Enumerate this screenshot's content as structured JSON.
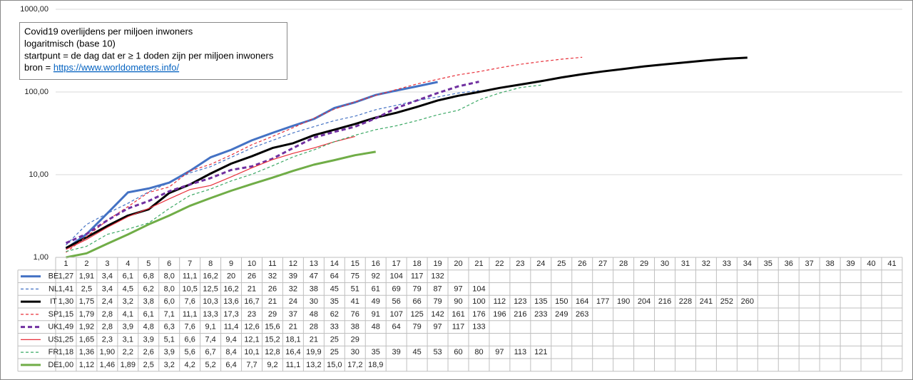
{
  "chart_data": {
    "type": "line",
    "annotation": [
      "Covid19 overlijdens per miljoen inwoners",
      "logaritmisch (base 10)",
      "startpunt = de dag dat er ≥ 1 doden zijn per miljoen inwoners"
    ],
    "source_label": "bron = ",
    "source_url": "https://www.worldometers.info/",
    "log_scale": true,
    "grid": true,
    "ylim": [
      1,
      1000
    ],
    "yticks": [
      {
        "value": 1,
        "label": "1,00"
      },
      {
        "value": 10,
        "label": "10,00"
      },
      {
        "value": 100,
        "label": "100,00"
      },
      {
        "value": 1000,
        "label": "1000,00"
      }
    ],
    "categories": [
      "1",
      "2",
      "3",
      "4",
      "5",
      "6",
      "7",
      "8",
      "9",
      "10",
      "11",
      "12",
      "13",
      "14",
      "15",
      "16",
      "17",
      "18",
      "19",
      "20",
      "21",
      "22",
      "23",
      "24",
      "25",
      "26",
      "27",
      "28",
      "29",
      "30",
      "31",
      "32",
      "33",
      "34",
      "35",
      "36",
      "37",
      "38",
      "39",
      "40",
      "41"
    ],
    "series": [
      {
        "name": "BE",
        "color": "#4472c4",
        "line_style": "solid",
        "line_width": "thick",
        "values": [
          1.27,
          1.91,
          3.4,
          6.1,
          6.8,
          8.0,
          11.1,
          16.2,
          20,
          26,
          32,
          39,
          47,
          64,
          75,
          92,
          104,
          117,
          132,
          null,
          null,
          null,
          null,
          null,
          null,
          null,
          null,
          null,
          null,
          null,
          null,
          null,
          null,
          null,
          null,
          null,
          null,
          null,
          null,
          null,
          null
        ],
        "value_labels": [
          "1,27",
          "1,91",
          "3,4",
          "6,1",
          "6,8",
          "8,0",
          "11,1",
          "16,2",
          "20",
          "26",
          "32",
          "39",
          "47",
          "64",
          "75",
          "92",
          "104",
          "117",
          "132",
          null,
          null,
          null,
          null,
          null,
          null,
          null,
          null,
          null,
          null,
          null,
          null,
          null,
          null,
          null,
          null,
          null,
          null,
          null,
          null,
          null,
          null
        ]
      },
      {
        "name": "NL",
        "color": "#4472c4",
        "line_style": "dashed",
        "line_width": "thin",
        "values": [
          1.41,
          2.5,
          3.4,
          4.5,
          6.2,
          8.0,
          10.5,
          12.5,
          16.2,
          21,
          26,
          32,
          38,
          45,
          51,
          61,
          69,
          79,
          87,
          97,
          104,
          null,
          null,
          null,
          null,
          null,
          null,
          null,
          null,
          null,
          null,
          null,
          null,
          null,
          null,
          null,
          null,
          null,
          null,
          null,
          null
        ],
        "value_labels": [
          "1,41",
          "2,5",
          "3,4",
          "4,5",
          "6,2",
          "8,0",
          "10,5",
          "12,5",
          "16,2",
          "21",
          "26",
          "32",
          "38",
          "45",
          "51",
          "61",
          "69",
          "79",
          "87",
          "97",
          "104",
          null,
          null,
          null,
          null,
          null,
          null,
          null,
          null,
          null,
          null,
          null,
          null,
          null,
          null,
          null,
          null,
          null,
          null,
          null,
          null
        ]
      },
      {
        "name": "IT",
        "color": "#000000",
        "line_style": "solid",
        "line_width": "thick",
        "values": [
          1.3,
          1.75,
          2.4,
          3.2,
          3.8,
          6.0,
          7.6,
          10.3,
          13.6,
          16.7,
          21,
          24,
          30,
          35,
          41,
          49,
          56,
          66,
          79,
          90,
          100,
          112,
          123,
          135,
          150,
          164,
          177,
          190,
          204,
          216,
          228,
          241,
          252,
          260,
          null,
          null,
          null,
          null,
          null,
          null,
          null
        ],
        "value_labels": [
          "1,30",
          "1,75",
          "2,4",
          "3,2",
          "3,8",
          "6,0",
          "7,6",
          "10,3",
          "13,6",
          "16,7",
          "21",
          "24",
          "30",
          "35",
          "41",
          "49",
          "56",
          "66",
          "79",
          "90",
          "100",
          "112",
          "123",
          "135",
          "150",
          "164",
          "177",
          "190",
          "204",
          "216",
          "228",
          "241",
          "252",
          "260",
          null,
          null,
          null,
          null,
          null,
          null,
          null
        ]
      },
      {
        "name": "SP",
        "color": "#e8303a",
        "line_style": "dashed",
        "line_width": "thin",
        "values": [
          1.15,
          1.79,
          2.8,
          4.1,
          6.1,
          7.1,
          11.1,
          13.3,
          17.3,
          23,
          29,
          37,
          48,
          62,
          76,
          91,
          107,
          125,
          142,
          161,
          176,
          196,
          216,
          233,
          249,
          263,
          null,
          null,
          null,
          null,
          null,
          null,
          null,
          null,
          null,
          null,
          null,
          null,
          null,
          null,
          null
        ],
        "value_labels": [
          "1,15",
          "1,79",
          "2,8",
          "4,1",
          "6,1",
          "7,1",
          "11,1",
          "13,3",
          "17,3",
          "23",
          "29",
          "37",
          "48",
          "62",
          "76",
          "91",
          "107",
          "125",
          "142",
          "161",
          "176",
          "196",
          "216",
          "233",
          "249",
          "263",
          null,
          null,
          null,
          null,
          null,
          null,
          null,
          null,
          null,
          null,
          null,
          null,
          null,
          null,
          null
        ]
      },
      {
        "name": "UK",
        "color": "#7030a0",
        "line_style": "dashed",
        "line_width": "thick",
        "values": [
          1.49,
          1.92,
          2.8,
          3.9,
          4.8,
          6.3,
          7.6,
          9.1,
          11.4,
          12.6,
          15.6,
          21,
          28,
          33,
          38,
          48,
          64,
          79,
          97,
          117,
          133,
          null,
          null,
          null,
          null,
          null,
          null,
          null,
          null,
          null,
          null,
          null,
          null,
          null,
          null,
          null,
          null,
          null,
          null,
          null,
          null
        ],
        "value_labels": [
          "1,49",
          "1,92",
          "2,8",
          "3,9",
          "4,8",
          "6,3",
          "7,6",
          "9,1",
          "11,4",
          "12,6",
          "15,6",
          "21",
          "28",
          "33",
          "38",
          "48",
          "64",
          "79",
          "97",
          "117",
          "133",
          null,
          null,
          null,
          null,
          null,
          null,
          null,
          null,
          null,
          null,
          null,
          null,
          null,
          null,
          null,
          null,
          null,
          null,
          null,
          null
        ]
      },
      {
        "name": "US",
        "color": "#e8303a",
        "line_style": "solid",
        "line_width": "thin",
        "values": [
          1.25,
          1.65,
          2.3,
          3.1,
          3.9,
          5.1,
          6.6,
          7.4,
          9.4,
          12.1,
          15.2,
          18.1,
          21,
          25,
          29,
          null,
          null,
          null,
          null,
          null,
          null,
          null,
          null,
          null,
          null,
          null,
          null,
          null,
          null,
          null,
          null,
          null,
          null,
          null,
          null,
          null,
          null,
          null,
          null,
          null,
          null
        ],
        "value_labels": [
          "1,25",
          "1,65",
          "2,3",
          "3,1",
          "3,9",
          "5,1",
          "6,6",
          "7,4",
          "9,4",
          "12,1",
          "15,2",
          "18,1",
          "21",
          "25",
          "29",
          null,
          null,
          null,
          null,
          null,
          null,
          null,
          null,
          null,
          null,
          null,
          null,
          null,
          null,
          null,
          null,
          null,
          null,
          null,
          null,
          null,
          null,
          null,
          null,
          null,
          null
        ]
      },
      {
        "name": "FR",
        "color": "#3aa864",
        "line_style": "dashed",
        "line_width": "thin",
        "values": [
          1.18,
          1.36,
          1.9,
          2.2,
          2.6,
          3.9,
          5.6,
          6.7,
          8.4,
          10.1,
          12.8,
          16.4,
          19.9,
          25,
          30,
          35,
          39,
          45,
          53,
          60,
          80,
          97,
          113,
          121,
          null,
          null,
          null,
          null,
          null,
          null,
          null,
          null,
          null,
          null,
          null,
          null,
          null,
          null,
          null,
          null,
          null
        ],
        "value_labels": [
          "1,18",
          "1,36",
          "1,90",
          "2,2",
          "2,6",
          "3,9",
          "5,6",
          "6,7",
          "8,4",
          "10,1",
          "12,8",
          "16,4",
          "19,9",
          "25",
          "30",
          "35",
          "39",
          "45",
          "53",
          "60",
          "80",
          "97",
          "113",
          "121",
          null,
          null,
          null,
          null,
          null,
          null,
          null,
          null,
          null,
          null,
          null,
          null,
          null,
          null,
          null,
          null,
          null
        ]
      },
      {
        "name": "DE",
        "color": "#70ad47",
        "line_style": "solid",
        "line_width": "thick",
        "values": [
          1.0,
          1.12,
          1.46,
          1.89,
          2.5,
          3.2,
          4.2,
          5.2,
          6.4,
          7.7,
          9.2,
          11.1,
          13.2,
          15.0,
          17.2,
          18.9,
          null,
          null,
          null,
          null,
          null,
          null,
          null,
          null,
          null,
          null,
          null,
          null,
          null,
          null,
          null,
          null,
          null,
          null,
          null,
          null,
          null,
          null,
          null,
          null,
          null
        ],
        "value_labels": [
          "1,00",
          "1,12",
          "1,46",
          "1,89",
          "2,5",
          "3,2",
          "4,2",
          "5,2",
          "6,4",
          "7,7",
          "9,2",
          "11,1",
          "13,2",
          "15,0",
          "17,2",
          "18,9",
          null,
          null,
          null,
          null,
          null,
          null,
          null,
          null,
          null,
          null,
          null,
          null,
          null,
          null,
          null,
          null,
          null,
          null,
          null,
          null,
          null,
          null,
          null,
          null,
          null
        ]
      }
    ]
  }
}
